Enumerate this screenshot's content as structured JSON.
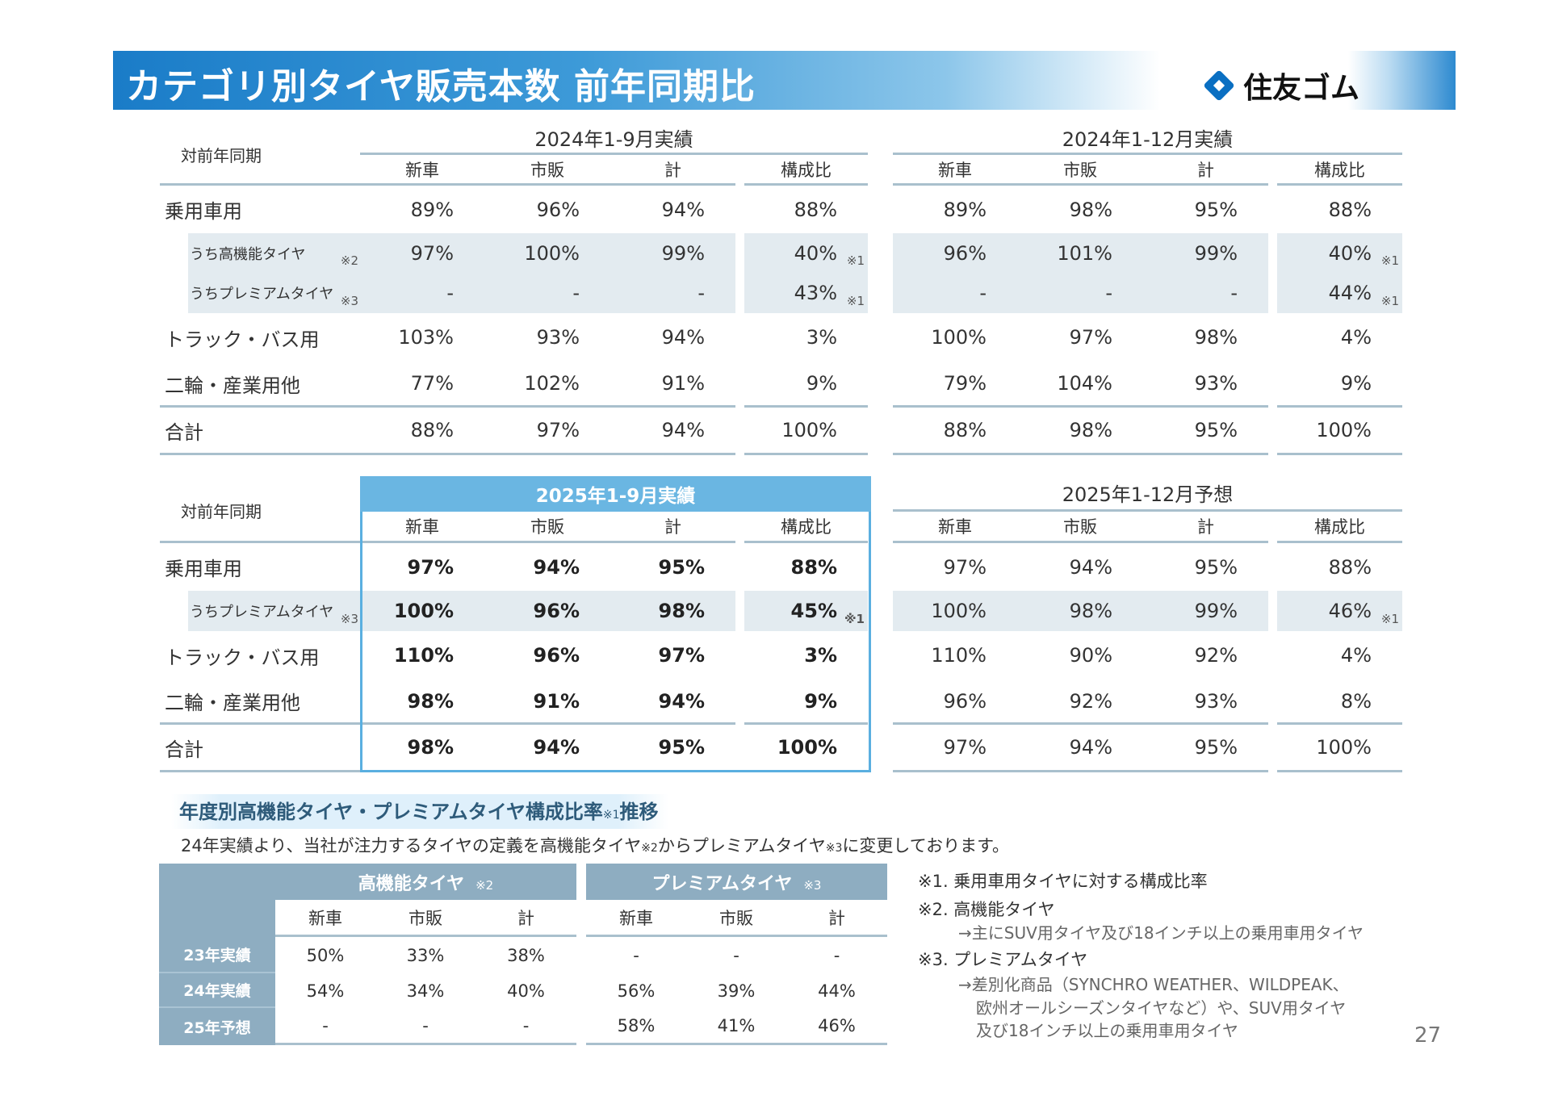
{
  "header": {
    "title": "カテゴリ別タイヤ販売本数 前年同期比",
    "logo_text": "住友ゴム",
    "logo_icon": "sumitomo-diamond-icon",
    "accent": "#1a7cc8"
  },
  "tables": [
    {
      "corner": "対前年同期",
      "row_labels": [
        "乗用車用",
        "うち高機能タイヤ",
        "うちプレミアムタイヤ",
        "トラック・バス用",
        "二輪・産業用他",
        "合計"
      ],
      "row_notes": [
        "",
        "※2",
        "※3",
        "",
        "",
        ""
      ],
      "groups": [
        {
          "title": "2024年1-9月実績",
          "cols": [
            "新車",
            "市販",
            "計",
            "構成比"
          ],
          "rows": [
            [
              "89%",
              "96%",
              "94%",
              "88%"
            ],
            [
              "97%",
              "100%",
              "99%",
              "40%"
            ],
            [
              "-",
              "-",
              "-",
              "43%"
            ],
            [
              "103%",
              "93%",
              "94%",
              "3%"
            ],
            [
              "77%",
              "102%",
              "91%",
              "9%"
            ],
            [
              "88%",
              "97%",
              "94%",
              "100%"
            ]
          ],
          "ratio_notes": [
            "",
            "※1",
            "※1",
            "",
            "",
            ""
          ]
        },
        {
          "title": "2024年1-12月実績",
          "cols": [
            "新車",
            "市販",
            "計",
            "構成比"
          ],
          "rows": [
            [
              "89%",
              "98%",
              "95%",
              "88%"
            ],
            [
              "96%",
              "101%",
              "99%",
              "40%"
            ],
            [
              "-",
              "-",
              "-",
              "44%"
            ],
            [
              "100%",
              "97%",
              "98%",
              "4%"
            ],
            [
              "79%",
              "104%",
              "93%",
              "9%"
            ],
            [
              "88%",
              "98%",
              "95%",
              "100%"
            ]
          ],
          "ratio_notes": [
            "",
            "※1",
            "※1",
            "",
            "",
            ""
          ]
        }
      ]
    },
    {
      "corner": "対前年同期",
      "row_labels": [
        "乗用車用",
        "うちプレミアムタイヤ",
        "トラック・バス用",
        "二輪・産業用他",
        "合計"
      ],
      "row_notes": [
        "",
        "※3",
        "",
        "",
        ""
      ],
      "groups": [
        {
          "title": "2025年1-9月実績",
          "highlight": "#6ab6e2",
          "cols": [
            "新車",
            "市販",
            "計",
            "構成比"
          ],
          "rows": [
            [
              "97%",
              "94%",
              "95%",
              "88%"
            ],
            [
              "100%",
              "96%",
              "98%",
              "45%"
            ],
            [
              "110%",
              "96%",
              "97%",
              "3%"
            ],
            [
              "98%",
              "91%",
              "94%",
              "9%"
            ],
            [
              "98%",
              "94%",
              "95%",
              "100%"
            ]
          ],
          "ratio_notes": [
            "",
            "※1",
            "",
            "",
            ""
          ]
        },
        {
          "title": "2025年1-12月予想",
          "cols": [
            "新車",
            "市販",
            "計",
            "構成比"
          ],
          "rows": [
            [
              "97%",
              "94%",
              "95%",
              "88%"
            ],
            [
              "100%",
              "98%",
              "99%",
              "46%"
            ],
            [
              "110%",
              "90%",
              "92%",
              "4%"
            ],
            [
              "96%",
              "92%",
              "93%",
              "8%"
            ],
            [
              "97%",
              "94%",
              "95%",
              "100%"
            ]
          ],
          "ratio_notes": [
            "",
            "※1",
            "",
            "",
            ""
          ]
        }
      ]
    }
  ],
  "trend": {
    "title": "年度別高機能タイヤ・プレミアムタイヤ構成比率",
    "title_note": "※1",
    "title_suffix": "推移",
    "desc_a": "24年実績より、当社が注力するタイヤの定義を高機能タイヤ",
    "desc_n1": "※2",
    "desc_b": "からプレミアムタイヤ",
    "desc_n2": "※3",
    "desc_c": "に変更しております。",
    "groups": [
      {
        "title": "高機能タイヤ",
        "note": "※2",
        "cols": [
          "新車",
          "市販",
          "計"
        ]
      },
      {
        "title": "プレミアムタイヤ",
        "note": "※3",
        "cols": [
          "新車",
          "市販",
          "計"
        ]
      }
    ],
    "rows": [
      {
        "label": "23年実績",
        "values": [
          "50%",
          "33%",
          "38%",
          "-",
          "-",
          "-"
        ]
      },
      {
        "label": "24年実績",
        "values": [
          "54%",
          "34%",
          "40%",
          "56%",
          "39%",
          "44%"
        ]
      },
      {
        "label": "25年予想",
        "values": [
          "-",
          "-",
          "-",
          "58%",
          "41%",
          "46%"
        ]
      }
    ]
  },
  "notes": [
    {
      "text": "※1. 乗用車用タイヤに対する構成比率",
      "sub": false
    },
    {
      "text": "※2. 高機能タイヤ",
      "sub": false
    },
    {
      "text": "→主にSUV用タイヤ及び18インチ以上の乗用車用タイヤ",
      "sub": true
    },
    {
      "text": "※3. プレミアムタイヤ",
      "sub": false
    },
    {
      "text": "→差別化商品（SYNCHRO WEATHER、WILDPEAK、",
      "sub": true
    },
    {
      "text": "欧州オールシーズンタイヤなど）や、SUV用タイヤ",
      "sub": true,
      "indent": true
    },
    {
      "text": "及び18インチ以上の乗用車用タイヤ",
      "sub": true,
      "indent": true
    }
  ],
  "page_number": "27"
}
